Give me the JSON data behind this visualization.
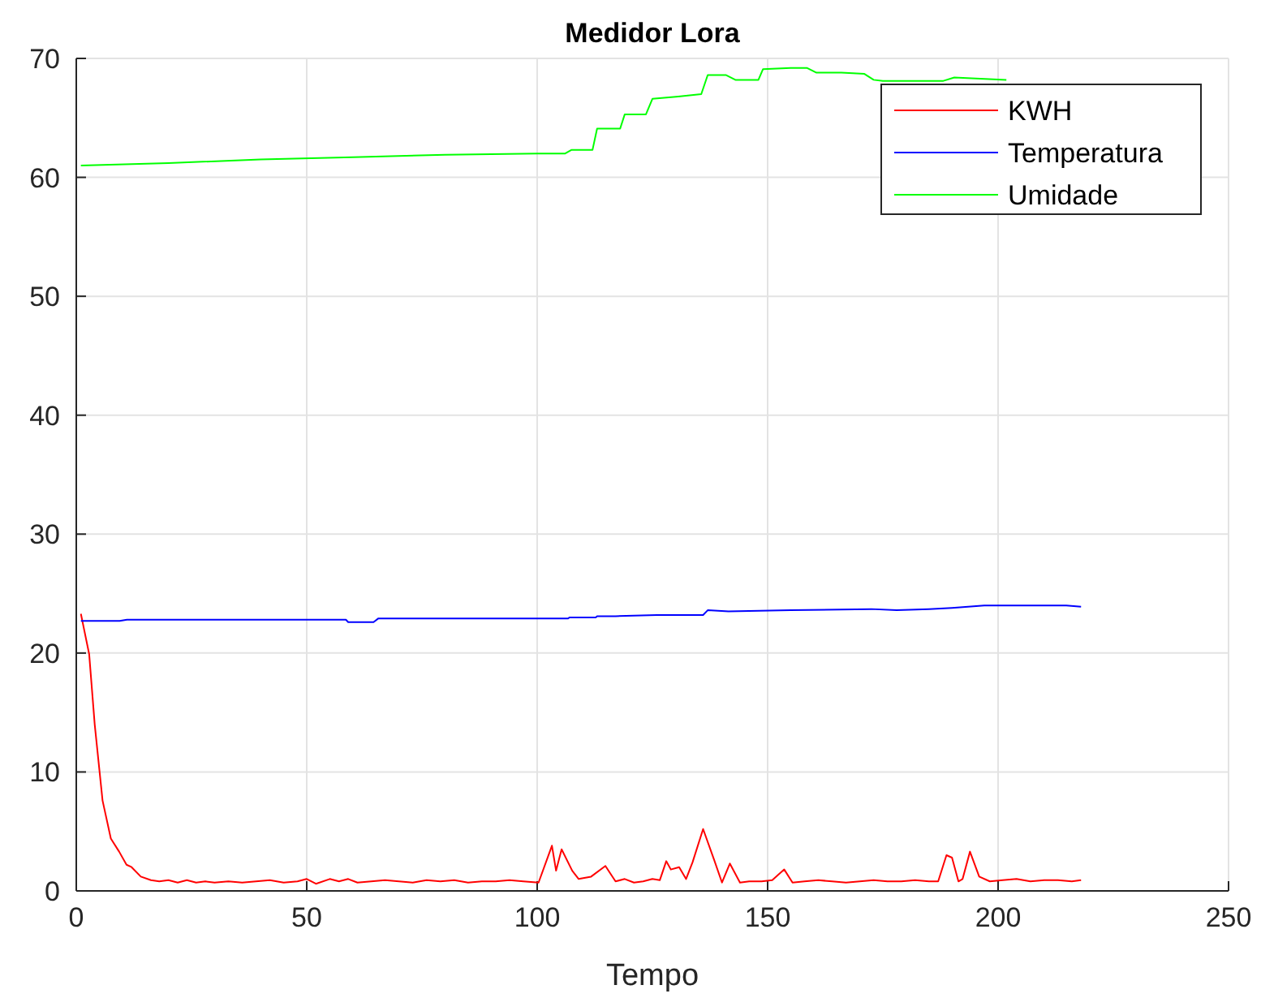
{
  "chart_data": {
    "type": "line",
    "title": "Medidor Lora",
    "xlabel": "Tempo",
    "xlim": [
      0,
      250
    ],
    "xticks": [
      0,
      50,
      100,
      150,
      200,
      250
    ],
    "ylim": [
      0,
      70
    ],
    "yticks": [
      0,
      10,
      20,
      30,
      40,
      50,
      60,
      70
    ],
    "grid": true,
    "legend": "top right",
    "marker": "none",
    "line_style": "solid",
    "series": [
      {
        "name": "KWH",
        "color": "#ff0000",
        "x": [
          1,
          2.8,
          4,
          5.7,
          7.5,
          9.3,
          10.9,
          12,
          14,
          16.2,
          18,
          20,
          22,
          24,
          26,
          28,
          30,
          33,
          36,
          39,
          42,
          45,
          48,
          50,
          52,
          55,
          57,
          59,
          61,
          64,
          67,
          70,
          73,
          76,
          79,
          82,
          85,
          88,
          91,
          94,
          97,
          100.3,
          103.2,
          104.1,
          105.3,
          107.6,
          109,
          111.7,
          114.8,
          117,
          119,
          121,
          123,
          125,
          126.6,
          128,
          129,
          130.8,
          132.3,
          133.7,
          136,
          138.4,
          140.1,
          141.8,
          144,
          146,
          148.7,
          151,
          153.6,
          155.4,
          158,
          161,
          164,
          167,
          170,
          173,
          176,
          179,
          182,
          185,
          187,
          188.8,
          190,
          191.4,
          192.3,
          193.9,
          195.9,
          198.2,
          201,
          204,
          207,
          210,
          213,
          216,
          218
        ],
        "values": [
          23.3,
          19.9,
          14.0,
          7.6,
          4.4,
          3.3,
          2.2,
          2.0,
          1.2,
          0.9,
          0.8,
          0.9,
          0.7,
          0.9,
          0.7,
          0.8,
          0.7,
          0.8,
          0.7,
          0.8,
          0.9,
          0.7,
          0.8,
          1.0,
          0.6,
          1.0,
          0.8,
          1.0,
          0.7,
          0.8,
          0.9,
          0.8,
          0.7,
          0.9,
          0.8,
          0.9,
          0.7,
          0.8,
          0.8,
          0.9,
          0.8,
          0.7,
          3.8,
          1.7,
          3.5,
          1.7,
          1.0,
          1.2,
          2.1,
          0.8,
          1.0,
          0.7,
          0.8,
          1.0,
          0.9,
          2.5,
          1.8,
          2.0,
          1.0,
          2.4,
          5.2,
          2.6,
          0.7,
          2.3,
          0.7,
          0.8,
          0.8,
          0.9,
          1.8,
          0.7,
          0.8,
          0.9,
          0.8,
          0.7,
          0.8,
          0.9,
          0.8,
          0.8,
          0.9,
          0.8,
          0.8,
          3.0,
          2.8,
          0.8,
          1.0,
          3.3,
          1.2,
          0.8,
          0.9,
          1.0,
          0.8,
          0.9,
          0.9,
          0.8,
          0.9
        ]
      },
      {
        "name": "Temperatura",
        "color": "#0000ff",
        "x": [
          1,
          9.4,
          11,
          58.5,
          59,
          64.5,
          65.5,
          106.7,
          107,
          112.7,
          113,
          117,
          126,
          136,
          137,
          141.5,
          155,
          172.5,
          178,
          185,
          190,
          197,
          214.8,
          218
        ],
        "values": [
          22.7,
          22.7,
          22.8,
          22.8,
          22.6,
          22.6,
          22.9,
          22.9,
          23.0,
          23.0,
          23.1,
          23.1,
          23.2,
          23.2,
          23.6,
          23.5,
          23.6,
          23.7,
          23.6,
          23.7,
          23.8,
          24.0,
          24.0,
          23.9
        ]
      },
      {
        "name": "Umidade",
        "color": "#00ff00",
        "x": [
          1,
          20,
          40,
          60,
          80,
          100,
          106,
          107.4,
          112,
          113,
          118,
          119,
          123.6,
          125,
          130.6,
          135.6,
          137,
          141,
          143,
          148,
          149,
          155,
          158.5,
          160.6,
          166,
          171,
          173,
          175,
          188,
          190.5,
          201.8
        ],
        "values": [
          61.0,
          61.2,
          61.5,
          61.7,
          61.9,
          62.0,
          62.0,
          62.3,
          62.3,
          64.1,
          64.1,
          65.3,
          65.3,
          66.6,
          66.8,
          67.0,
          68.6,
          68.6,
          68.2,
          68.2,
          69.1,
          69.2,
          69.2,
          68.8,
          68.8,
          68.7,
          68.2,
          68.1,
          68.1,
          68.4,
          68.2
        ]
      }
    ]
  }
}
